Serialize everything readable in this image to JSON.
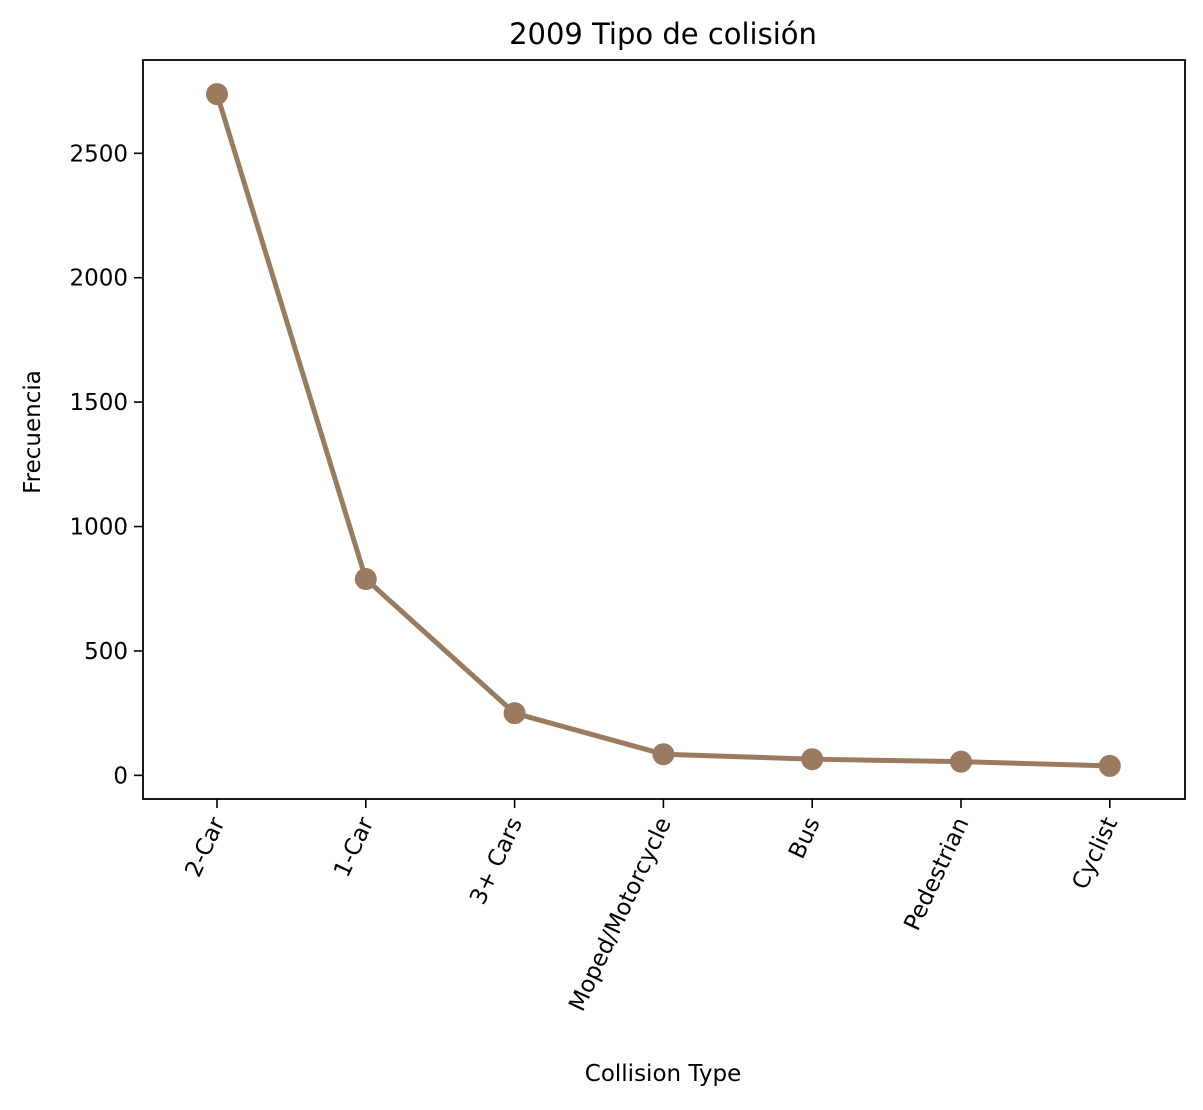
{
  "chart_data": {
    "type": "line",
    "title": "2009 Tipo de colisión",
    "xlabel": "Collision Type",
    "ylabel": "Frecuencia",
    "categories": [
      "2-Car",
      "1-Car",
      "3+ Cars",
      "Moped/Motorcycle",
      "Bus",
      "Pedestrian",
      "Cyclist"
    ],
    "values": [
      2738,
      789,
      250,
      85,
      65,
      55,
      38
    ],
    "ylim": [
      -95,
      2875
    ],
    "yticks": [
      0,
      500,
      1000,
      1500,
      2000,
      2500
    ],
    "ytick_labels": [
      "0",
      "500",
      "1000",
      "1500",
      "2000",
      "2500"
    ],
    "grid": false,
    "line_color": "#9a7b5f",
    "marker": "circle"
  }
}
